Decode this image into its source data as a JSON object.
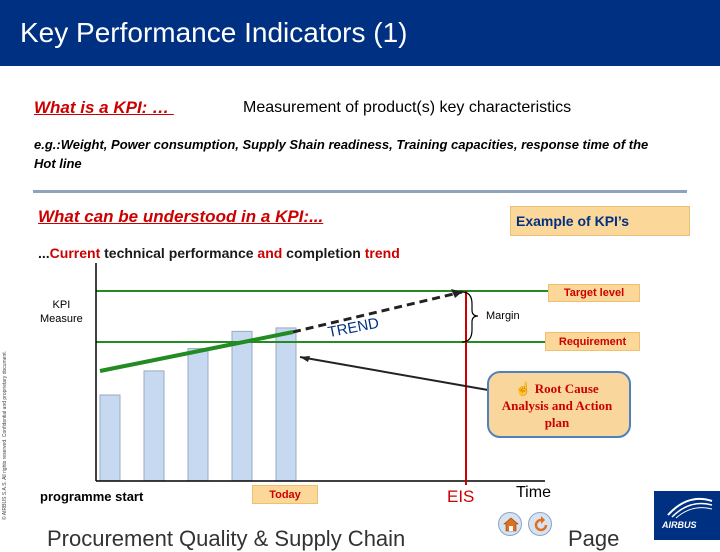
{
  "header": {
    "title": "Key Performance Indicators (1)",
    "bg_color": "#003082"
  },
  "definition": {
    "question": "What is a KPI: … ",
    "answer": "Measurement of product(s) key characteristics",
    "examples": "e.g.:Weight, Power consumption, Supply Shain readiness, Training capacities, response time of the Hot line"
  },
  "understood": {
    "title": "What can be understood in a KPI:...",
    "example_box": "Example of KPI’s",
    "trend_prefix": "...",
    "trend_current": "Current",
    "trend_mid1": " technical performance ",
    "trend_and": "and",
    "trend_mid2": " completion ",
    "trend_word": "trend"
  },
  "chart": {
    "kpi_measure_line1": "KPI",
    "kpi_measure_line2": "Measure",
    "target_level": "Target level",
    "requirement": "Requirement",
    "trend_label": "TREND",
    "margin": "Margin",
    "callout_icon": "☝",
    "callout_text": "Root Cause Analysis and Action plan",
    "programme_start": "programme start",
    "today": "Today",
    "eis": "EIS",
    "time": "Time",
    "bar_values": [
      0.5,
      0.64,
      0.77,
      0.87,
      0.89
    ],
    "colors": {
      "bar": "#c6d9f0",
      "bar_border": "#9aaac0",
      "level_line": "#228b22",
      "eis_line": "#cc0000",
      "accent": "#cc0000"
    }
  },
  "footer": {
    "text": "Procurement Quality & Supply Chain",
    "page": "Page",
    "side_note": "© AIRBUS S.A.S. All rights reserved. Confidential and proprietary document.",
    "logo": "AIRBUS",
    "home_icon": "home-icon",
    "back_icon": "back-icon"
  }
}
